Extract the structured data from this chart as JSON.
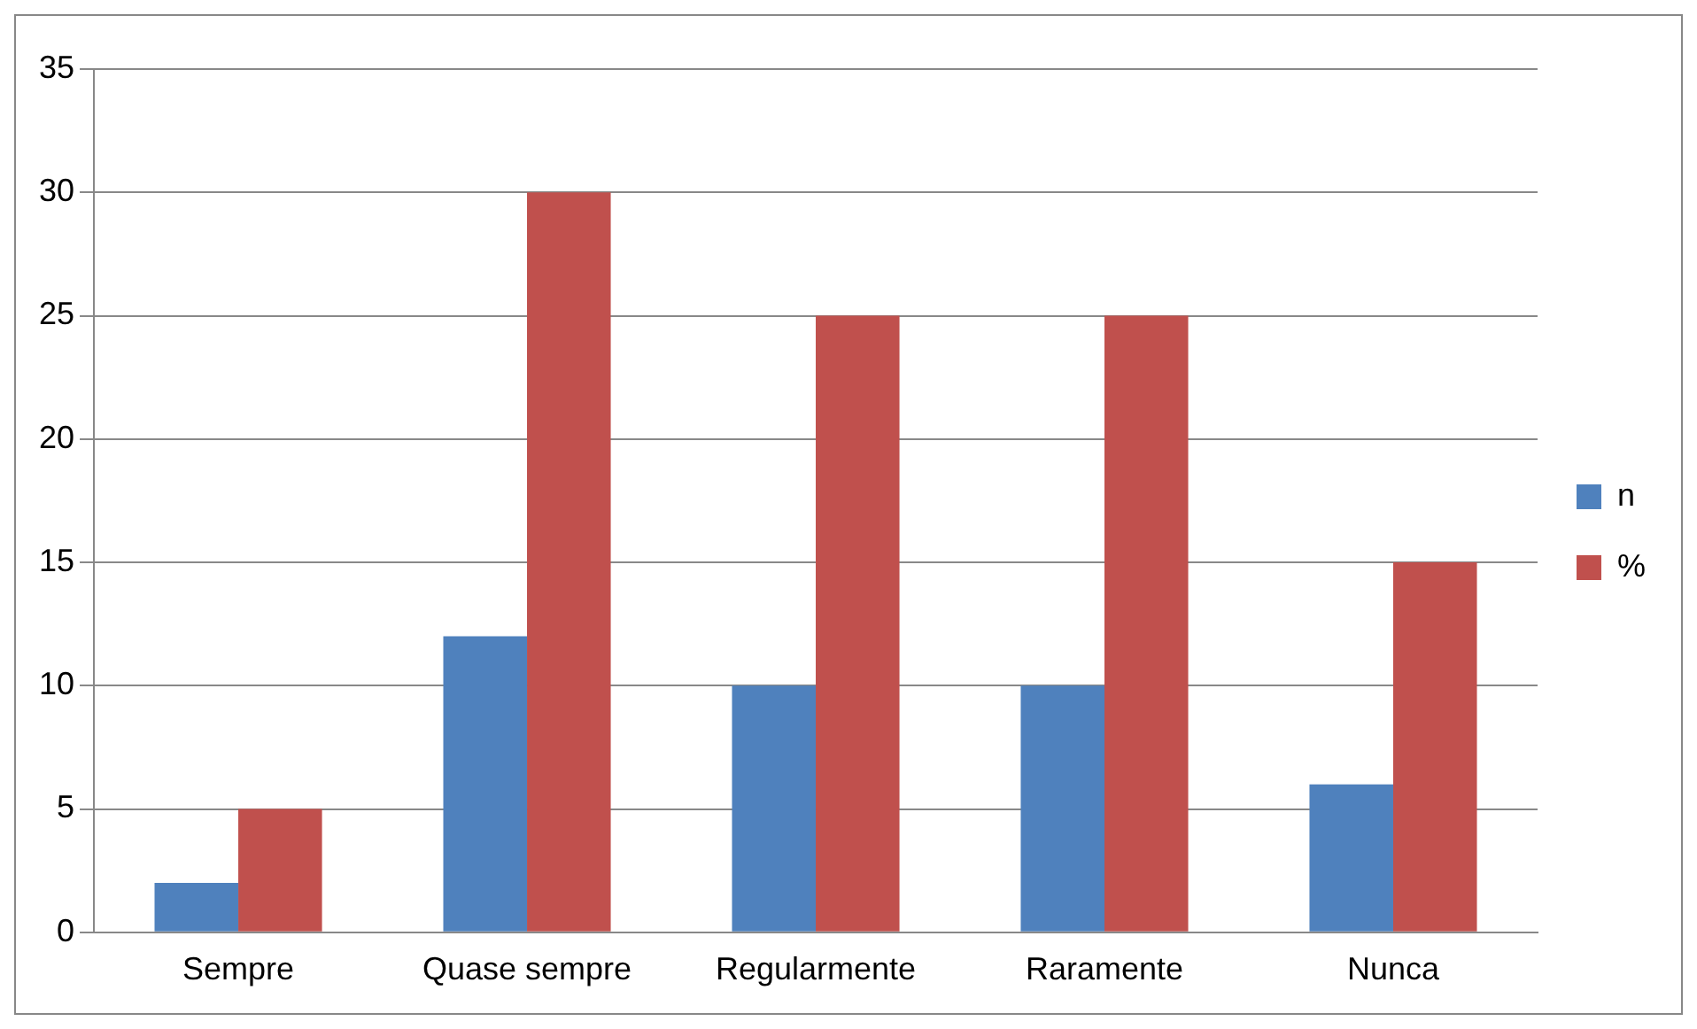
{
  "chart_data": {
    "type": "bar",
    "categories": [
      "Sempre",
      "Quase sempre",
      "Regularmente",
      "Raramente",
      "Nunca"
    ],
    "series": [
      {
        "name": "n",
        "color": "#4f81bd",
        "values": [
          2,
          12,
          10,
          10,
          6
        ]
      },
      {
        "name": "%",
        "color": "#c0504d",
        "values": [
          5,
          30,
          25,
          25,
          15
        ]
      }
    ],
    "ylim": [
      0,
      35
    ],
    "yticks": [
      0,
      5,
      10,
      15,
      20,
      25,
      30,
      35
    ],
    "grid": "y",
    "legend": "right"
  }
}
